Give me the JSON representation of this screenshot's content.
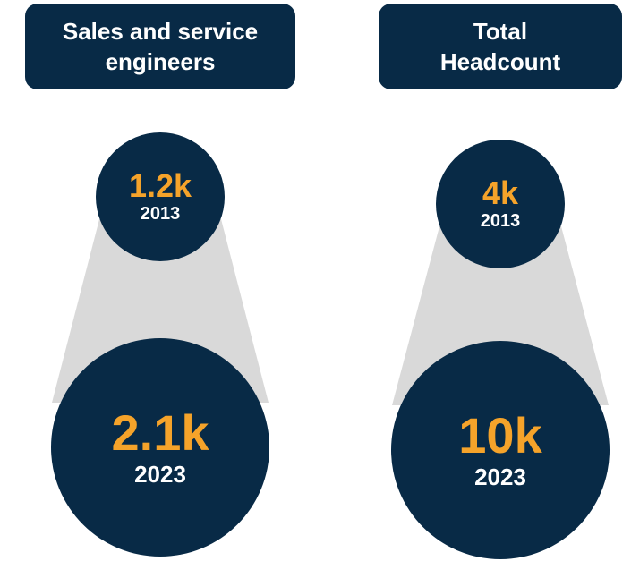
{
  "panels": [
    {
      "title_lines": [
        "Sales and service",
        "engineers"
      ],
      "items": [
        {
          "value": "1.2k",
          "year": "2013"
        },
        {
          "value": "2.1k",
          "year": "2023"
        }
      ]
    },
    {
      "title_lines": [
        "Total",
        "Headcount"
      ],
      "items": [
        {
          "value": "4k",
          "year": "2013"
        },
        {
          "value": "10k",
          "year": "2023"
        }
      ]
    }
  ]
}
